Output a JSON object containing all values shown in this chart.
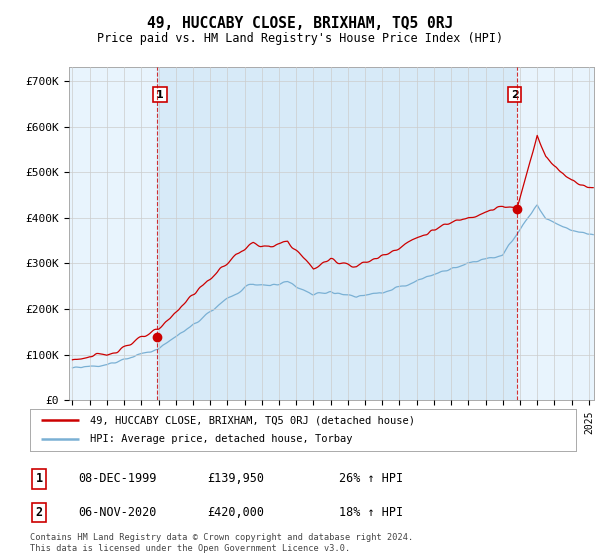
{
  "title": "49, HUCCABY CLOSE, BRIXHAM, TQ5 0RJ",
  "subtitle": "Price paid vs. HM Land Registry's House Price Index (HPI)",
  "ylabel_ticks": [
    "£0",
    "£100K",
    "£200K",
    "£300K",
    "£400K",
    "£500K",
    "£600K",
    "£700K"
  ],
  "ytick_values": [
    0,
    100000,
    200000,
    300000,
    400000,
    500000,
    600000,
    700000
  ],
  "ylim": [
    0,
    730000
  ],
  "xlim_start": 1994.8,
  "xlim_end": 2025.3,
  "sale1_x": 1999.93,
  "sale1_y": 139950,
  "sale2_x": 2020.84,
  "sale2_y": 420000,
  "red_color": "#cc0000",
  "blue_color": "#7ab0d4",
  "fill_color": "#ddeeff",
  "vline_color": "#cc0000",
  "legend_line1": "49, HUCCABY CLOSE, BRIXHAM, TQ5 0RJ (detached house)",
  "legend_line2": "HPI: Average price, detached house, Torbay",
  "table_row1_date": "08-DEC-1999",
  "table_row1_price": "£139,950",
  "table_row1_hpi": "26% ↑ HPI",
  "table_row2_date": "06-NOV-2020",
  "table_row2_price": "£420,000",
  "table_row2_hpi": "18% ↑ HPI",
  "footer": "Contains HM Land Registry data © Crown copyright and database right 2024.\nThis data is licensed under the Open Government Licence v3.0.",
  "background_color": "#ffffff",
  "grid_color": "#cccccc",
  "box_edge_color": "#cc0000"
}
